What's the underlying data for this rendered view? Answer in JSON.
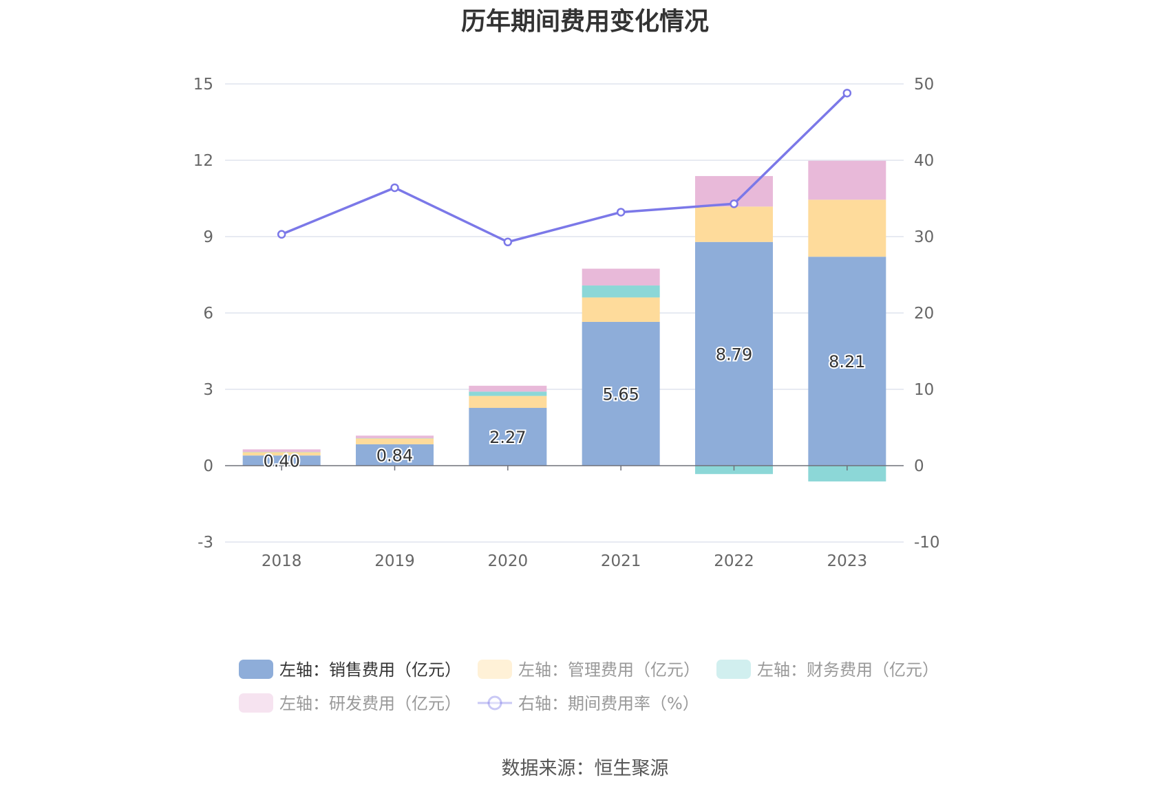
{
  "title": "历年期间费用变化情况",
  "source": "数据来源：恒生聚源",
  "chart_data": {
    "type": "bar",
    "categories": [
      "2018",
      "2019",
      "2020",
      "2021",
      "2022",
      "2023"
    ],
    "left_axis": {
      "ylim": [
        -3,
        15
      ],
      "ticks": [
        "-3",
        "0",
        "3",
        "6",
        "9",
        "12",
        "15"
      ]
    },
    "right_axis": {
      "ylim": [
        -10,
        50
      ],
      "ticks": [
        "-10",
        "0",
        "10",
        "20",
        "30",
        "40",
        "50"
      ]
    },
    "grid": true,
    "legend_position": "bottom",
    "series": [
      {
        "name": "左轴：销售费用（亿元）",
        "kind": "bar",
        "axis": "left",
        "color": "#8eadd9",
        "values": [
          0.4,
          0.84,
          2.27,
          5.65,
          8.79,
          8.21
        ],
        "labels": [
          "0.40",
          "0.84",
          "2.27",
          "5.65",
          "8.79",
          "8.21"
        ]
      },
      {
        "name": "左轴：管理费用（亿元）",
        "kind": "bar",
        "axis": "left",
        "color": "#fedb9b",
        "values": [
          0.13,
          0.23,
          0.47,
          0.96,
          1.39,
          2.24
        ]
      },
      {
        "name": "左轴：财务费用（亿元）",
        "kind": "bar",
        "axis": "left",
        "color": "#8cd7d7",
        "values": [
          0.01,
          0.01,
          0.17,
          0.47,
          -0.33,
          -0.62
        ]
      },
      {
        "name": "左轴：研发费用（亿元）",
        "kind": "bar",
        "axis": "left",
        "color": "#e8b9d9",
        "values": [
          0.1,
          0.1,
          0.23,
          0.66,
          1.2,
          1.53
        ]
      },
      {
        "name": "右轴：期间费用率（%）",
        "kind": "line",
        "axis": "right",
        "color": "#7b78e8",
        "values": [
          30.3,
          36.4,
          29.3,
          33.2,
          34.3,
          48.8
        ]
      }
    ]
  },
  "legend": [
    {
      "label": "左轴：销售费用（亿元）",
      "color": "#8eadd9",
      "active": true,
      "symbol": "bar"
    },
    {
      "label": "左轴：管理费用（亿元）",
      "color": "#fedb9b",
      "active": false,
      "symbol": "bar"
    },
    {
      "label": "左轴：财务费用（亿元）",
      "color": "#8cd7d7",
      "active": false,
      "symbol": "bar"
    },
    {
      "label": "左轴：研发费用（亿元）",
      "color": "#e8b9d9",
      "active": false,
      "symbol": "bar"
    },
    {
      "label": "右轴：期间费用率（%）",
      "color": "#7b78e8",
      "active": false,
      "symbol": "line"
    }
  ]
}
